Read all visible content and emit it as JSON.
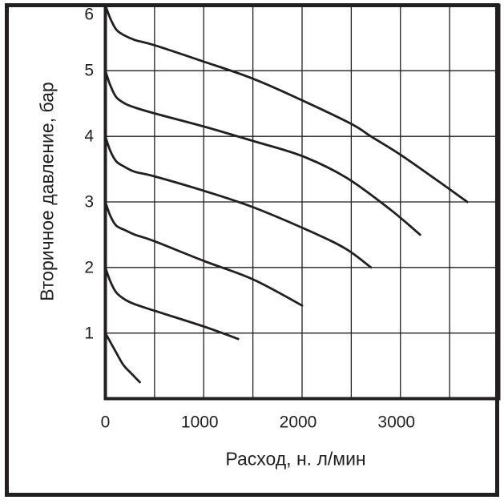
{
  "chart_data": {
    "type": "line",
    "xlabel": "Расход, н. л/мин",
    "ylabel": "Вторичное давление, бар",
    "xlim": [
      0,
      4000
    ],
    "ylim": [
      0,
      6
    ],
    "x_ticks": [
      0,
      1000,
      2000,
      3000
    ],
    "y_ticks": [
      6,
      5,
      4,
      3,
      2,
      1
    ],
    "x_grid_interval": 500,
    "y_grid_interval": 1,
    "grid": true,
    "legend": false,
    "background_color": "#ffffff",
    "line_color": "#231f20",
    "grid_color": "#231f20",
    "frame_color": "#231f20",
    "series": [
      {
        "start_pressure_bar": 6,
        "points": [
          [
            0,
            6.0
          ],
          [
            50,
            5.8
          ],
          [
            110,
            5.63
          ],
          [
            180,
            5.55
          ],
          [
            300,
            5.47
          ],
          [
            500,
            5.39
          ],
          [
            1000,
            5.14
          ],
          [
            1500,
            4.88
          ],
          [
            2000,
            4.55
          ],
          [
            2500,
            4.19
          ],
          [
            2700,
            4.0
          ],
          [
            3000,
            3.72
          ],
          [
            3400,
            3.3
          ],
          [
            3680,
            3.0
          ]
        ]
      },
      {
        "start_pressure_bar": 5,
        "points": [
          [
            0,
            5.0
          ],
          [
            50,
            4.78
          ],
          [
            110,
            4.6
          ],
          [
            200,
            4.5
          ],
          [
            300,
            4.44
          ],
          [
            500,
            4.35
          ],
          [
            1000,
            4.15
          ],
          [
            1500,
            3.93
          ],
          [
            2000,
            3.7
          ],
          [
            2450,
            3.37
          ],
          [
            2900,
            2.88
          ],
          [
            3200,
            2.5
          ]
        ]
      },
      {
        "start_pressure_bar": 4,
        "points": [
          [
            0,
            4.0
          ],
          [
            50,
            3.78
          ],
          [
            110,
            3.62
          ],
          [
            190,
            3.54
          ],
          [
            300,
            3.46
          ],
          [
            500,
            3.39
          ],
          [
            1000,
            3.17
          ],
          [
            1500,
            2.92
          ],
          [
            2100,
            2.54
          ],
          [
            2450,
            2.28
          ],
          [
            2700,
            2.0
          ]
        ]
      },
      {
        "start_pressure_bar": 3,
        "points": [
          [
            0,
            3.0
          ],
          [
            50,
            2.79
          ],
          [
            110,
            2.64
          ],
          [
            200,
            2.57
          ],
          [
            300,
            2.5
          ],
          [
            500,
            2.4
          ],
          [
            1000,
            2.1
          ],
          [
            1500,
            1.82
          ],
          [
            2000,
            1.42
          ]
        ]
      },
      {
        "start_pressure_bar": 2,
        "points": [
          [
            0,
            2.0
          ],
          [
            50,
            1.79
          ],
          [
            110,
            1.62
          ],
          [
            200,
            1.51
          ],
          [
            300,
            1.44
          ],
          [
            500,
            1.34
          ],
          [
            1000,
            1.1
          ],
          [
            1350,
            0.91
          ]
        ]
      },
      {
        "start_pressure_bar": 1,
        "points": [
          [
            0,
            1.0
          ],
          [
            100,
            0.73
          ],
          [
            180,
            0.52
          ],
          [
            260,
            0.39
          ],
          [
            350,
            0.25
          ]
        ]
      }
    ]
  }
}
